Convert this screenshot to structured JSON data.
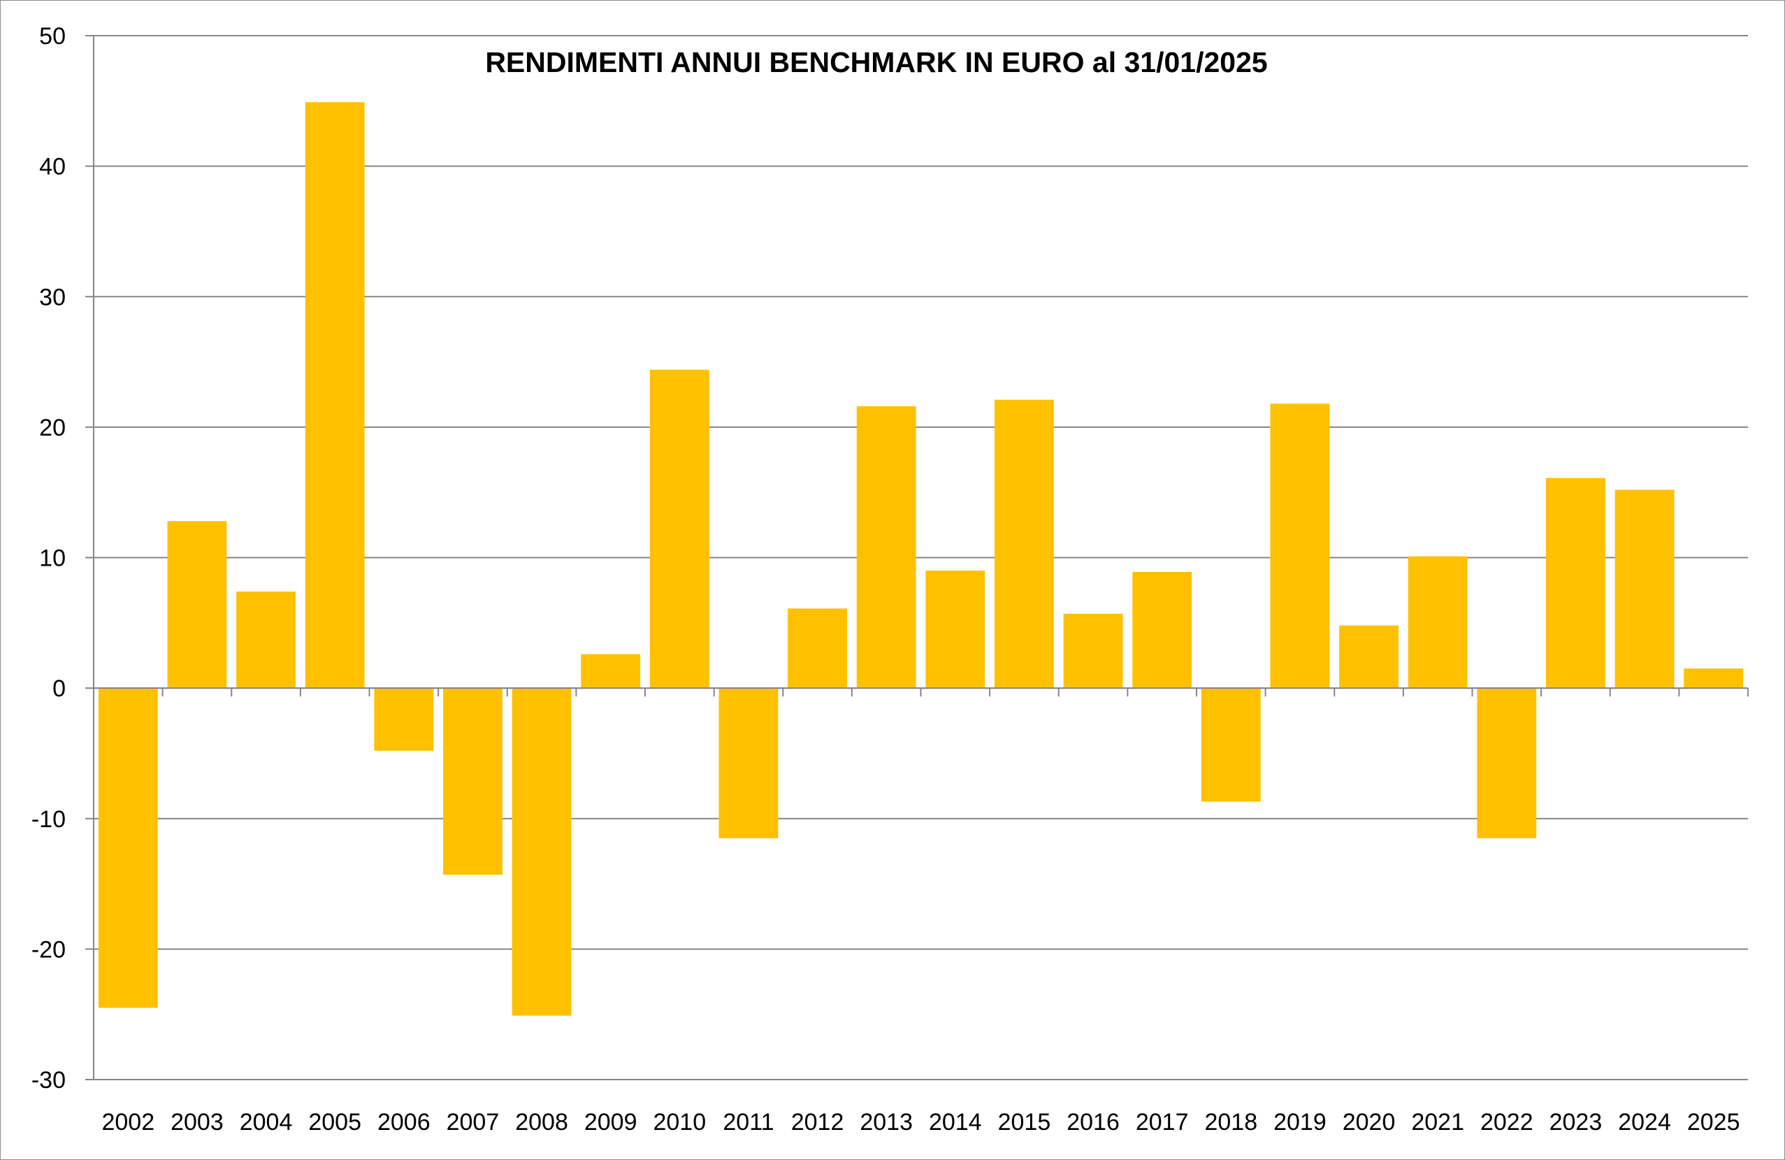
{
  "chart_data": {
    "type": "bar",
    "title": "RENDIMENTI ANNUI BENCHMARK IN EURO al 31/01/2025",
    "xlabel": "",
    "ylabel": "",
    "categories": [
      "2002",
      "2003",
      "2004",
      "2005",
      "2006",
      "2007",
      "2008",
      "2009",
      "2010",
      "2011",
      "2012",
      "2013",
      "2014",
      "2015",
      "2016",
      "2017",
      "2018",
      "2019",
      "2020",
      "2021",
      "2022",
      "2023",
      "2024",
      "2025"
    ],
    "values": [
      -24.5,
      12.8,
      7.4,
      44.9,
      -4.8,
      -14.3,
      -25.1,
      2.6,
      24.4,
      -11.5,
      6.1,
      21.6,
      9.0,
      22.1,
      5.7,
      8.9,
      -8.7,
      21.8,
      4.8,
      10.1,
      -11.5,
      16.1,
      15.2,
      1.5
    ],
    "yticks": [
      "50",
      "40",
      "30",
      "20",
      "10",
      "0",
      "-10",
      "-20",
      "-30"
    ],
    "ylim": [
      -30,
      50
    ],
    "grid": true,
    "legend": "none",
    "bar_color": "#ffc000",
    "grid_color": "#868686"
  }
}
